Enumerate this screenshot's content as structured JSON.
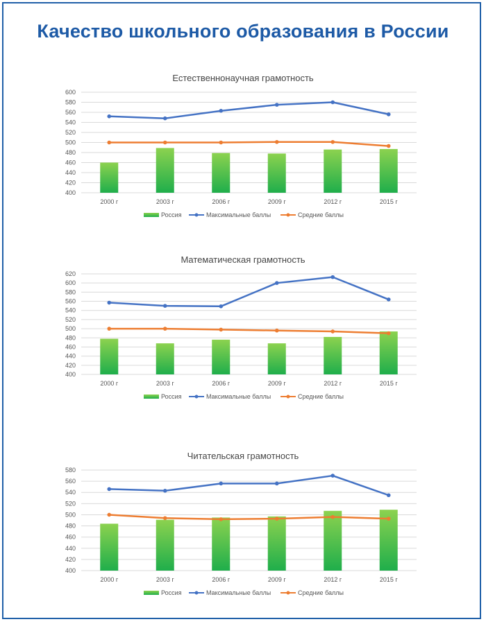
{
  "page": {
    "title": "Качество школьного образования в России"
  },
  "colors": {
    "frame": "#1f5fa8",
    "title": "#1d5aa6",
    "bar_top": "#8cd24f",
    "bar_bottom": "#1fae4b",
    "max_line": "#4472c4",
    "avg_line": "#ed7d31",
    "grid": "#d9d9d9"
  },
  "chart_data": [
    {
      "type": "bar",
      "title": "Естественнонаучная грамотность",
      "categories": [
        "2000 г",
        "2003 г",
        "2006 г",
        "2009 г",
        "2012 г",
        "2015 г"
      ],
      "ylim": [
        400,
        600
      ],
      "yticks": [
        400,
        420,
        440,
        460,
        480,
        500,
        520,
        540,
        560,
        580,
        600
      ],
      "series": [
        {
          "name": "Россия",
          "kind": "bar",
          "values": [
            460,
            489,
            479,
            478,
            486,
            487
          ]
        },
        {
          "name": "Максимальные баллы",
          "kind": "line",
          "values": [
            552,
            548,
            563,
            575,
            580,
            556
          ]
        },
        {
          "name": "Средние баллы",
          "kind": "line",
          "values": [
            500,
            500,
            500,
            501,
            501,
            493
          ]
        }
      ]
    },
    {
      "type": "bar",
      "title": "Математическая грамотность",
      "categories": [
        "2000 г",
        "2003 г",
        "2006 г",
        "2009 г",
        "2012 г",
        "2015 г"
      ],
      "ylim": [
        400,
        620
      ],
      "yticks": [
        400,
        420,
        440,
        460,
        480,
        500,
        520,
        540,
        560,
        580,
        600,
        620
      ],
      "series": [
        {
          "name": "Россия",
          "kind": "bar",
          "values": [
            478,
            468,
            476,
            468,
            482,
            494
          ]
        },
        {
          "name": "Максимальные баллы",
          "kind": "line",
          "values": [
            557,
            550,
            549,
            600,
            613,
            564
          ]
        },
        {
          "name": "Средние баллы",
          "kind": "line",
          "values": [
            500,
            500,
            498,
            496,
            494,
            490
          ]
        }
      ]
    },
    {
      "type": "bar",
      "title": "Читательская грамотность",
      "categories": [
        "2000 г",
        "2003 г",
        "2006 г",
        "2009 г",
        "2012 г",
        "2015 г"
      ],
      "ylim": [
        400,
        580
      ],
      "yticks": [
        400,
        420,
        440,
        460,
        480,
        500,
        520,
        540,
        560,
        580
      ],
      "series": [
        {
          "name": "Россия",
          "kind": "bar",
          "values": [
            484,
            491,
            495,
            497,
            507,
            509
          ]
        },
        {
          "name": "Максимальные баллы",
          "kind": "line",
          "values": [
            546,
            543,
            556,
            556,
            570,
            535
          ]
        },
        {
          "name": "Средние баллы",
          "kind": "line",
          "values": [
            500,
            494,
            492,
            493,
            496,
            493
          ]
        }
      ]
    }
  ]
}
